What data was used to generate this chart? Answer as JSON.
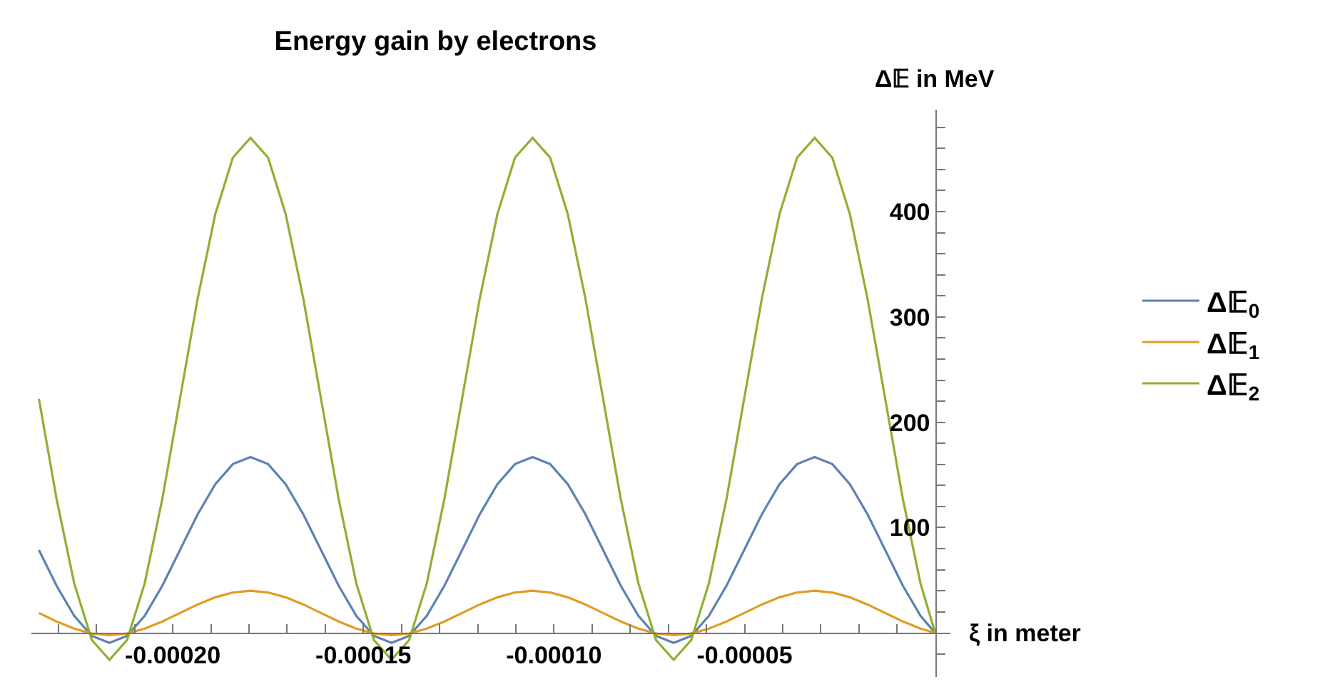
{
  "chart_data": {
    "type": "line",
    "title": "Energy gain by electrons",
    "xlabel": "ξ in meter",
    "ylabel": "Δ𝔼 in MeV",
    "legend": "right",
    "x": [
      -0.0002351,
      -0.000230475,
      -0.00022585,
      -0.000221225,
      -0.0002166,
      -0.000211975,
      -0.00020735,
      -0.000202725,
      -0.0001981,
      -0.000193475,
      -0.00018885,
      -0.000184225,
      -0.0001796,
      -0.000174975,
      -0.00017035,
      -0.000165725,
      -0.0001611,
      -0.000156475,
      -0.00015185,
      -0.000147225,
      -0.0001426,
      -0.000137975,
      -0.00013335,
      -0.000128725,
      -0.0001241,
      -0.000119475,
      -0.00011485,
      -0.000110225,
      -0.0001056,
      -0.000100975,
      -9.635e-05,
      -9.1725e-05,
      -8.71e-05,
      -8.2475e-05,
      -7.785e-05,
      -7.3225e-05,
      -6.86e-05,
      -6.3975e-05,
      -5.935e-05,
      -5.4725e-05,
      -5.01e-05,
      -4.5475e-05,
      -4.085e-05,
      -3.6225e-05,
      -3.16e-05,
      -2.6975e-05,
      -2.235e-05,
      -1.7725e-05,
      -1.31e-05,
      -8.475e-06,
      -3.85e-06,
      0
    ],
    "series": [
      {
        "name": "Δ𝔼$_{0}$",
        "color": "#5e81b5",
        "values": [
          78.7,
          44.9,
          16.3,
          -2.8,
          -9.5,
          -2.8,
          16.3,
          44.9,
          78.7,
          112.5,
          141.1,
          160.3,
          167,
          160.3,
          141.1,
          112.5,
          78.7,
          44.9,
          16.3,
          -2.8,
          -9.5,
          -2.8,
          16.3,
          44.9,
          78.7,
          112.5,
          141.1,
          160.3,
          167,
          160.3,
          141.1,
          112.5,
          78.7,
          44.9,
          16.3,
          -2.8,
          -9.5,
          -2.8,
          16.3,
          44.9,
          78.7,
          112.5,
          141.1,
          160.3,
          167,
          160.3,
          141.1,
          112.5,
          78.7,
          44.9,
          16.3,
          0
        ]
      },
      {
        "name": "Δ𝔼$_{1}$",
        "color": "#e19c24",
        "values": [
          18.9,
          10.9,
          4.1,
          -0.5,
          -2.1,
          -0.5,
          4.1,
          10.9,
          18.9,
          27.0,
          33.8,
          38.4,
          40,
          38.4,
          33.8,
          27.0,
          18.9,
          10.9,
          4.1,
          -0.5,
          -2.1,
          -0.5,
          4.1,
          10.9,
          18.9,
          27.0,
          33.8,
          38.4,
          40,
          38.4,
          33.8,
          27.0,
          18.9,
          10.9,
          4.1,
          -0.5,
          -2.1,
          -0.5,
          4.1,
          10.9,
          18.9,
          27.0,
          33.8,
          38.4,
          40,
          38.4,
          33.8,
          27.0,
          18.9,
          10.9,
          4.1,
          0
        ]
      },
      {
        "name": "Δ𝔼$_{2}$",
        "color": "#8fb032",
        "values": [
          222.2,
          127.3,
          47.1,
          -6.7,
          -25.5,
          -6.7,
          47.1,
          127.3,
          222.2,
          317.1,
          397.4,
          451.2,
          470,
          451.2,
          397.4,
          317.1,
          222.2,
          127.3,
          47.1,
          -6.7,
          -25.5,
          -6.7,
          47.1,
          127.3,
          222.2,
          317.1,
          397.4,
          451.2,
          470,
          451.2,
          397.4,
          317.1,
          222.2,
          127.3,
          47.1,
          -6.7,
          -25.5,
          -6.7,
          47.1,
          127.3,
          222.2,
          317.1,
          397.4,
          451.2,
          470,
          451.2,
          397.4,
          317.1,
          222.2,
          127.3,
          47.1,
          0
        ]
      }
    ],
    "xlim": [
      -0.000237,
      4e-06
    ],
    "ylim": [
      -42,
      497
    ],
    "xticks": [
      {
        "value": -0.00023,
        "label": null
      },
      {
        "value": -0.00022,
        "label": null
      },
      {
        "value": -0.00021,
        "label": null
      },
      {
        "value": -0.0002,
        "label": "-0.00020"
      },
      {
        "value": -0.00019,
        "label": null
      },
      {
        "value": -0.00018,
        "label": null
      },
      {
        "value": -0.00017,
        "label": null
      },
      {
        "value": -0.00016,
        "label": null
      },
      {
        "value": -0.00015,
        "label": "-0.00015"
      },
      {
        "value": -0.00014,
        "label": null
      },
      {
        "value": -0.00013,
        "label": null
      },
      {
        "value": -0.00012,
        "label": null
      },
      {
        "value": -0.00011,
        "label": null
      },
      {
        "value": -0.0001,
        "label": "-0.00010"
      },
      {
        "value": -9e-05,
        "label": null
      },
      {
        "value": -8e-05,
        "label": null
      },
      {
        "value": -7e-05,
        "label": null
      },
      {
        "value": -6e-05,
        "label": null
      },
      {
        "value": -5e-05,
        "label": "-0.00005"
      },
      {
        "value": -4e-05,
        "label": null
      },
      {
        "value": -3e-05,
        "label": null
      },
      {
        "value": -2e-05,
        "label": null
      },
      {
        "value": -1e-05,
        "label": null
      }
    ],
    "yticks": [
      {
        "value": -20,
        "label": null
      },
      {
        "value": 20,
        "label": null
      },
      {
        "value": 40,
        "label": null
      },
      {
        "value": 60,
        "label": null
      },
      {
        "value": 80,
        "label": null
      },
      100,
      {
        "value": 120,
        "label": null
      },
      {
        "value": 140,
        "label": null
      },
      {
        "value": 160,
        "label": null
      },
      {
        "value": 180,
        "label": null
      },
      200,
      {
        "value": 220,
        "label": null
      },
      {
        "value": 240,
        "label": null
      },
      {
        "value": 260,
        "label": null
      },
      {
        "value": 280,
        "label": null
      },
      300,
      {
        "value": 320,
        "label": null
      },
      {
        "value": 340,
        "label": null
      },
      {
        "value": 360,
        "label": null
      },
      {
        "value": 380,
        "label": null
      },
      400,
      {
        "value": 420,
        "label": null
      },
      {
        "value": 440,
        "label": null
      },
      {
        "value": 460,
        "label": null
      },
      {
        "value": 480,
        "label": null
      }
    ]
  }
}
